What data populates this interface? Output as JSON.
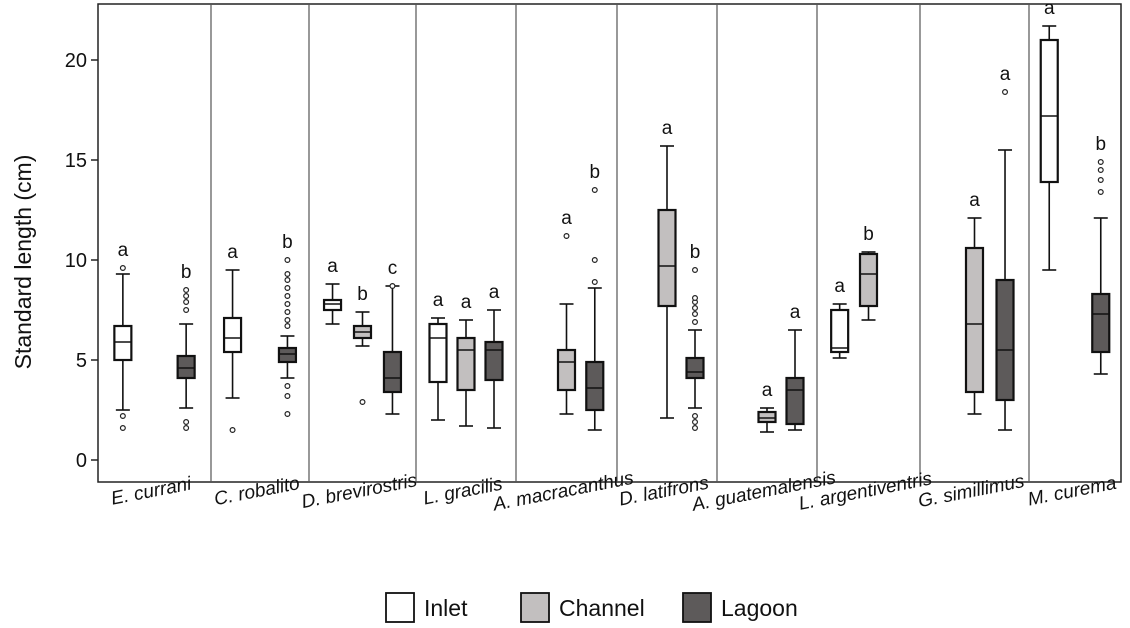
{
  "chart_data": {
    "type": "box",
    "ylabel": "Standard length (cm)",
    "ylim": [
      -1,
      23
    ],
    "yticks": [
      0,
      5,
      10,
      15,
      20
    ],
    "legend": {
      "placement": "bottom",
      "items": [
        {
          "name": "Inlet",
          "color": "#ffffff"
        },
        {
          "name": "Channel",
          "color": "#c2bfbf"
        },
        {
          "name": "Lagoon",
          "color": "#5d5a5a"
        }
      ]
    },
    "species": [
      {
        "name": "E. currani",
        "boxes": [
          {
            "series": "Inlet",
            "min": 2.5,
            "q1": 5.0,
            "median": 5.9,
            "q3": 6.7,
            "max": 9.3,
            "outliers": [
              9.6,
              2.2,
              1.6
            ],
            "letter": "a"
          },
          {
            "series": "Lagoon",
            "min": 2.6,
            "q1": 4.1,
            "median": 4.6,
            "q3": 5.2,
            "max": 6.8,
            "outliers": [
              7.5,
              7.9,
              8.2,
              8.5,
              1.9,
              1.6
            ],
            "letter": "b"
          }
        ]
      },
      {
        "name": "C. robalito",
        "boxes": [
          {
            "series": "Inlet",
            "min": 3.1,
            "q1": 5.4,
            "median": 6.1,
            "q3": 7.1,
            "max": 9.5,
            "outliers": [
              1.5
            ],
            "letter": "a"
          },
          {
            "series": "Lagoon",
            "min": 4.1,
            "q1": 4.9,
            "median": 5.3,
            "q3": 5.6,
            "max": 6.2,
            "outliers": [
              6.7,
              7.0,
              7.4,
              7.8,
              8.2,
              8.6,
              9.0,
              9.3,
              10.0,
              3.7,
              3.2,
              2.3
            ],
            "letter": "b"
          }
        ]
      },
      {
        "name": "D. brevirostris",
        "boxes": [
          {
            "series": "Inlet",
            "min": 6.8,
            "q1": 7.5,
            "median": 7.8,
            "q3": 8.0,
            "max": 8.8,
            "outliers": [],
            "letter": "a"
          },
          {
            "series": "Channel",
            "min": 5.7,
            "q1": 6.1,
            "median": 6.4,
            "q3": 6.7,
            "max": 7.4,
            "outliers": [
              2.9
            ],
            "letter": "b"
          },
          {
            "series": "Lagoon",
            "min": 2.3,
            "q1": 3.4,
            "median": 4.1,
            "q3": 5.4,
            "max": 8.7,
            "outliers": [
              8.7
            ],
            "letter": "c"
          }
        ]
      },
      {
        "name": "L. gracilis",
        "boxes": [
          {
            "series": "Inlet",
            "min": 2.0,
            "q1": 3.9,
            "median": 6.1,
            "q3": 6.8,
            "max": 7.1,
            "outliers": [],
            "letter": "a"
          },
          {
            "series": "Channel",
            "min": 1.7,
            "q1": 3.5,
            "median": 5.5,
            "q3": 6.1,
            "max": 7.0,
            "outliers": [],
            "letter": "a"
          },
          {
            "series": "Lagoon",
            "min": 1.6,
            "q1": 4.0,
            "median": 5.5,
            "q3": 5.9,
            "max": 7.5,
            "outliers": [],
            "letter": "a"
          }
        ]
      },
      {
        "name": "A. macracanthus",
        "boxes": [
          {
            "series": "Channel",
            "min": 2.3,
            "q1": 3.5,
            "median": 4.9,
            "q3": 5.5,
            "max": 7.8,
            "outliers": [
              11.2
            ],
            "letter": "a"
          },
          {
            "series": "Lagoon",
            "min": 1.5,
            "q1": 2.5,
            "median": 3.6,
            "q3": 4.9,
            "max": 8.6,
            "outliers": [
              8.9,
              10.0,
              13.5
            ],
            "letter": "b"
          }
        ]
      },
      {
        "name": "D. latifrons",
        "boxes": [
          {
            "series": "Channel",
            "min": 2.1,
            "q1": 7.7,
            "median": 9.7,
            "q3": 12.5,
            "max": 15.7,
            "outliers": [],
            "letter": "a"
          },
          {
            "series": "Lagoon",
            "min": 2.6,
            "q1": 4.1,
            "median": 4.4,
            "q3": 5.1,
            "max": 6.5,
            "outliers": [
              6.9,
              7.3,
              7.6,
              7.9,
              8.1,
              9.5,
              2.2,
              1.9,
              1.6
            ],
            "letter": "b"
          }
        ]
      },
      {
        "name": "A. guatemalensis",
        "boxes": [
          {
            "series": "Channel",
            "min": 1.4,
            "q1": 1.9,
            "median": 2.1,
            "q3": 2.4,
            "max": 2.6,
            "outliers": [],
            "letter": "a"
          },
          {
            "series": "Lagoon",
            "min": 1.5,
            "q1": 1.8,
            "median": 3.5,
            "q3": 4.1,
            "max": 6.5,
            "outliers": [],
            "letter": "a"
          }
        ]
      },
      {
        "name": "L. argentiventris",
        "boxes": [
          {
            "series": "Inlet",
            "min": 5.1,
            "q1": 5.4,
            "median": 5.6,
            "q3": 7.5,
            "max": 7.8,
            "outliers": [],
            "letter": "a"
          },
          {
            "series": "Channel",
            "min": 7.0,
            "q1": 7.7,
            "median": 9.3,
            "q3": 10.3,
            "max": 10.4,
            "outliers": [],
            "letter": "b"
          }
        ]
      },
      {
        "name": "G. simillimus",
        "boxes": [
          {
            "series": "Channel",
            "min": 2.3,
            "q1": 3.4,
            "median": 6.8,
            "q3": 10.6,
            "max": 12.1,
            "outliers": [],
            "letter": "a"
          },
          {
            "series": "Lagoon",
            "min": 1.5,
            "q1": 3.0,
            "median": 5.5,
            "q3": 9.0,
            "max": 15.5,
            "outliers": [
              18.4
            ],
            "letter": "a"
          }
        ]
      },
      {
        "name": "M. curema",
        "boxes": [
          {
            "series": "Inlet",
            "min": 9.5,
            "q1": 13.9,
            "median": 17.2,
            "q3": 21.0,
            "max": 21.7,
            "outliers": [],
            "letter": "a"
          },
          {
            "series": "Lagoon",
            "min": 4.3,
            "q1": 5.4,
            "median": 7.3,
            "q3": 8.3,
            "max": 12.1,
            "outliers": [
              13.4,
              14.0,
              14.5,
              14.9
            ],
            "letter": "b"
          }
        ]
      }
    ]
  }
}
